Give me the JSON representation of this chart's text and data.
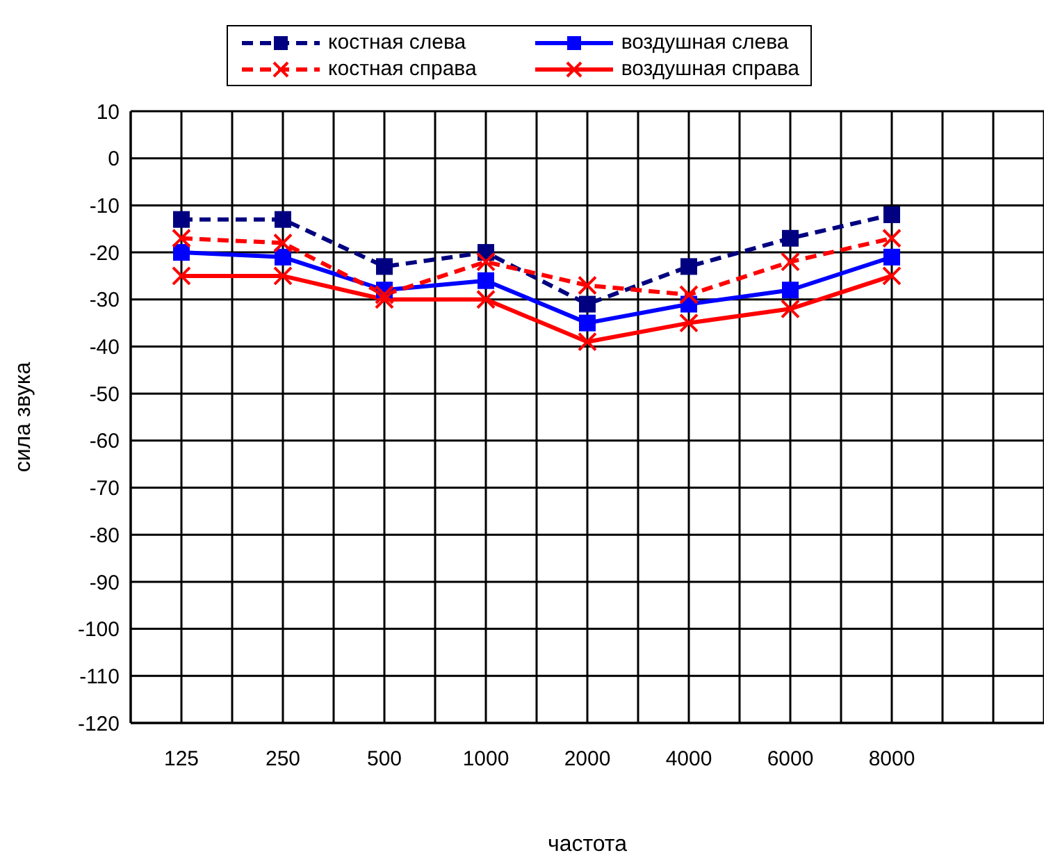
{
  "chart_data": {
    "type": "line",
    "xlabel": "частота",
    "ylabel": "сила звука",
    "categories": [
      "125",
      "250",
      "500",
      "1000",
      "2000",
      "4000",
      "6000",
      "8000",
      null
    ],
    "series": [
      {
        "name": "костная слева",
        "color": "#000080",
        "marker": "square",
        "line_style": "dashed",
        "values": [
          -13,
          -13,
          -23,
          -20,
          -31,
          -23,
          -17,
          -12,
          null
        ]
      },
      {
        "name": "воздушная слева",
        "color": "#0000ff",
        "marker": "square",
        "line_style": "solid",
        "values": [
          -20,
          -21,
          -28,
          -26,
          -35,
          -31,
          -28,
          -21,
          null
        ]
      },
      {
        "name": "костная справа",
        "color": "#ff0000",
        "marker": "cross",
        "line_style": "dashed",
        "values": [
          -17,
          -18,
          -29,
          -22,
          -27,
          -29,
          -22,
          -17,
          null
        ]
      },
      {
        "name": "воздушная справа",
        "color": "#ff0000",
        "marker": "cross",
        "line_style": "solid",
        "values": [
          -25,
          -25,
          -30,
          -30,
          -39,
          -35,
          -32,
          -25,
          null
        ]
      }
    ],
    "ylim": [
      -120,
      10
    ],
    "yticks": [
      -120,
      -110,
      -100,
      -90,
      -80,
      -70,
      -60,
      -50,
      -40,
      -30,
      -20,
      -10,
      0,
      10
    ],
    "grid": true,
    "legend": "top"
  }
}
